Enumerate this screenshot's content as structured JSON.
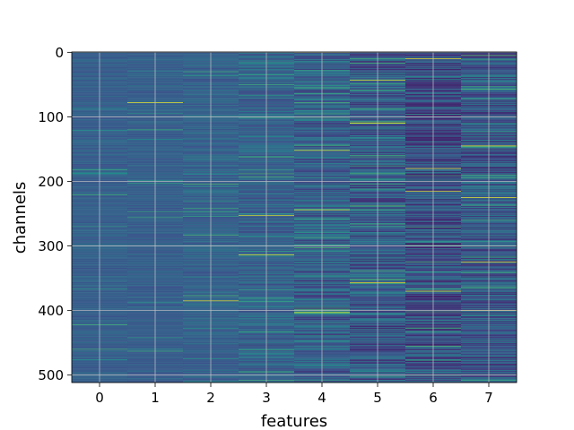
{
  "chart_data": {
    "type": "heatmap",
    "title": "",
    "xlabel": "features",
    "ylabel": "channels",
    "x_categories": [
      0,
      1,
      2,
      3,
      4,
      5,
      6,
      7
    ],
    "x_tick_labels": [
      "0",
      "1",
      "2",
      "3",
      "4",
      "5",
      "6",
      "7"
    ],
    "y_ticks": [
      0,
      100,
      200,
      300,
      400,
      500
    ],
    "y_tick_labels": [
      "0",
      "100",
      "200",
      "300",
      "400",
      "500"
    ],
    "rows": 512,
    "ylim": [
      511.5,
      -0.5
    ],
    "xlim": [
      -0.5,
      7.5
    ],
    "grid": true,
    "colormap": "viridis",
    "colors": {
      "low": "#440154",
      "low_mid": "#3b528b",
      "mid": "#21918c",
      "high_mid": "#5ec962",
      "high": "#fde725",
      "grid": "#c8c8c8"
    },
    "column_profiles": [
      {
        "feature": 0,
        "base": 0.3,
        "spread": 0.05,
        "bright_rows": []
      },
      {
        "feature": 1,
        "base": 0.3,
        "spread": 0.05,
        "bright_rows": [
          78
        ]
      },
      {
        "feature": 2,
        "base": 0.31,
        "spread": 0.07,
        "bright_rows": [
          385
        ]
      },
      {
        "feature": 3,
        "base": 0.31,
        "spread": 0.11,
        "bright_rows": [
          253,
          314
        ]
      },
      {
        "feature": 4,
        "base": 0.3,
        "spread": 0.14,
        "bright_rows": [
          0,
          152,
          244,
          403
        ]
      },
      {
        "feature": 5,
        "base": 0.28,
        "spread": 0.16,
        "bright_rows": [
          43,
          110,
          357
        ]
      },
      {
        "feature": 6,
        "base": 0.24,
        "spread": 0.17,
        "bright_rows": [
          10,
          180,
          215,
          370
        ]
      },
      {
        "feature": 7,
        "base": 0.27,
        "spread": 0.16,
        "bright_rows": [
          145,
          225,
          325,
          400
        ]
      }
    ]
  }
}
